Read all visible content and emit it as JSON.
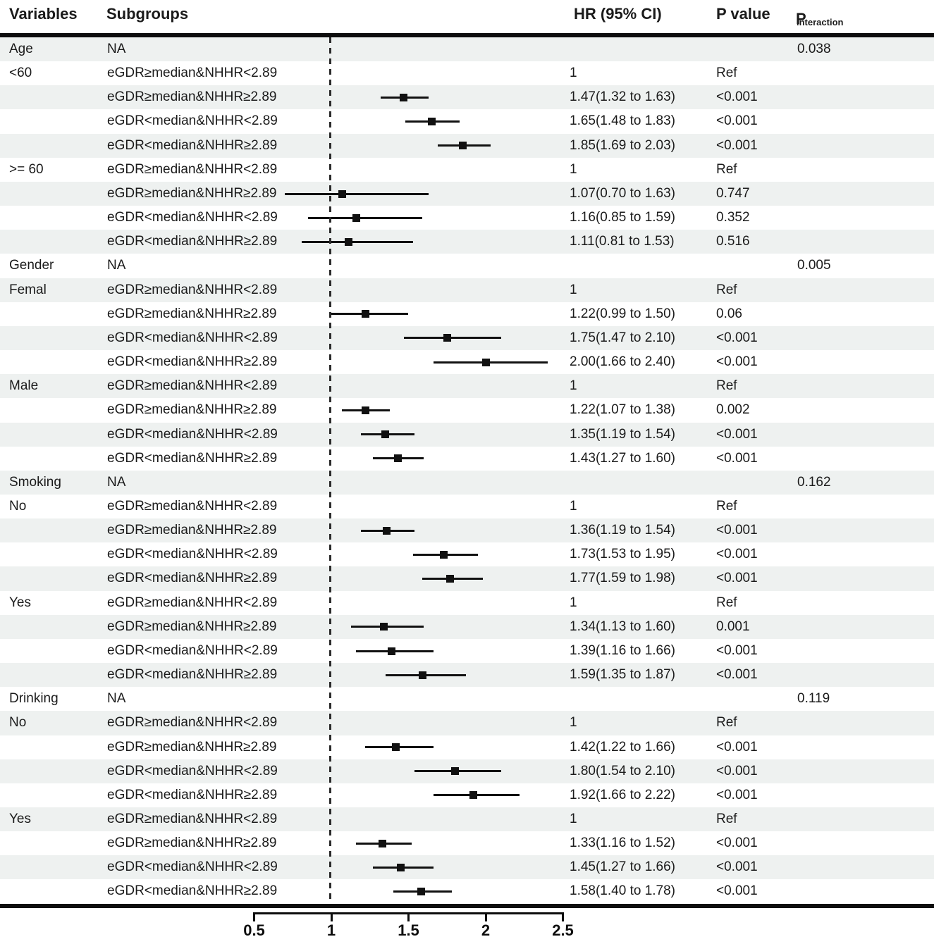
{
  "header": {
    "variables": "Variables",
    "subgroups": "Subgroups",
    "hr_ci": "HR (95% CI)",
    "p_value": "P value",
    "p_interaction_base": "P",
    "p_interaction_sub": "interaction"
  },
  "colors": {
    "stripe": "#eef1f0",
    "marker": "#111111",
    "rule": "#0d0d0d",
    "reference_dash": "#2b2b2b",
    "text": "#1b1b1b"
  },
  "chart_data": {
    "type": "forest",
    "columns": [
      "Variables",
      "Subgroups",
      "HR (95% CI)",
      "P value",
      "P interaction"
    ],
    "axis": {
      "range": [
        0.5,
        2.5
      ],
      "reference_line": 1,
      "ticks": [
        {
          "label": "0.5",
          "value": 0.5
        },
        {
          "label": "1",
          "value": 1
        },
        {
          "label": "1.5",
          "value": 1.5
        },
        {
          "label": "2",
          "value": 2
        },
        {
          "label": "2.5",
          "value": 2.5
        }
      ]
    },
    "rows": [
      {
        "variable": "Age",
        "subgroup": "NA",
        "hr_text": "",
        "p_value": "",
        "p_interaction": "0.038",
        "est": null,
        "lo": null,
        "hi": null
      },
      {
        "variable": "<60",
        "subgroup": "eGDR≥median&NHHR<2.89",
        "hr_text": "1",
        "p_value": "Ref",
        "p_interaction": "",
        "est": null,
        "lo": null,
        "hi": null
      },
      {
        "variable": "",
        "subgroup": "eGDR≥median&NHHR≥2.89",
        "hr_text": "1.47(1.32 to 1.63)",
        "p_value": "<0.001",
        "p_interaction": "",
        "est": 1.47,
        "lo": 1.32,
        "hi": 1.63
      },
      {
        "variable": "",
        "subgroup": "eGDR<median&NHHR<2.89",
        "hr_text": "1.65(1.48 to 1.83)",
        "p_value": "<0.001",
        "p_interaction": "",
        "est": 1.65,
        "lo": 1.48,
        "hi": 1.83
      },
      {
        "variable": "",
        "subgroup": "eGDR<median&NHHR≥2.89",
        "hr_text": "1.85(1.69 to 2.03)",
        "p_value": "<0.001",
        "p_interaction": "",
        "est": 1.85,
        "lo": 1.69,
        "hi": 2.03
      },
      {
        "variable": ">= 60",
        "subgroup": "eGDR≥median&NHHR<2.89",
        "hr_text": "1",
        "p_value": "Ref",
        "p_interaction": "",
        "est": null,
        "lo": null,
        "hi": null
      },
      {
        "variable": "",
        "subgroup": "eGDR≥median&NHHR≥2.89",
        "hr_text": "1.07(0.70 to 1.63)",
        "p_value": "0.747",
        "p_interaction": "",
        "est": 1.07,
        "lo": 0.7,
        "hi": 1.63
      },
      {
        "variable": "",
        "subgroup": "eGDR<median&NHHR<2.89",
        "hr_text": "1.16(0.85 to 1.59)",
        "p_value": "0.352",
        "p_interaction": "",
        "est": 1.16,
        "lo": 0.85,
        "hi": 1.59
      },
      {
        "variable": "",
        "subgroup": "eGDR<median&NHHR≥2.89",
        "hr_text": "1.11(0.81 to 1.53)",
        "p_value": "0.516",
        "p_interaction": "",
        "est": 1.11,
        "lo": 0.81,
        "hi": 1.53
      },
      {
        "variable": "Gender",
        "subgroup": "NA",
        "hr_text": "",
        "p_value": "",
        "p_interaction": "0.005",
        "est": null,
        "lo": null,
        "hi": null
      },
      {
        "variable": "Femal",
        "subgroup": "eGDR≥median&NHHR<2.89",
        "hr_text": "1",
        "p_value": "Ref",
        "p_interaction": "",
        "est": null,
        "lo": null,
        "hi": null
      },
      {
        "variable": "",
        "subgroup": "eGDR≥median&NHHR≥2.89",
        "hr_text": "1.22(0.99 to 1.50)",
        "p_value": "0.06",
        "p_interaction": "",
        "est": 1.22,
        "lo": 0.99,
        "hi": 1.5
      },
      {
        "variable": "",
        "subgroup": "eGDR<median&NHHR<2.89",
        "hr_text": "1.75(1.47 to 2.10)",
        "p_value": "<0.001",
        "p_interaction": "",
        "est": 1.75,
        "lo": 1.47,
        "hi": 2.1
      },
      {
        "variable": "",
        "subgroup": "eGDR<median&NHHR≥2.89",
        "hr_text": "2.00(1.66 to 2.40)",
        "p_value": "<0.001",
        "p_interaction": "",
        "est": 2.0,
        "lo": 1.66,
        "hi": 2.4
      },
      {
        "variable": "Male",
        "subgroup": "eGDR≥median&NHHR<2.89",
        "hr_text": "1",
        "p_value": "Ref",
        "p_interaction": "",
        "est": null,
        "lo": null,
        "hi": null
      },
      {
        "variable": "",
        "subgroup": "eGDR≥median&NHHR≥2.89",
        "hr_text": "1.22(1.07 to 1.38)",
        "p_value": "0.002",
        "p_interaction": "",
        "est": 1.22,
        "lo": 1.07,
        "hi": 1.38
      },
      {
        "variable": "",
        "subgroup": "eGDR<median&NHHR<2.89",
        "hr_text": "1.35(1.19 to 1.54)",
        "p_value": "<0.001",
        "p_interaction": "",
        "est": 1.35,
        "lo": 1.19,
        "hi": 1.54
      },
      {
        "variable": "",
        "subgroup": "eGDR<median&NHHR≥2.89",
        "hr_text": "1.43(1.27 to 1.60)",
        "p_value": "<0.001",
        "p_interaction": "",
        "est": 1.43,
        "lo": 1.27,
        "hi": 1.6
      },
      {
        "variable": "Smoking",
        "subgroup": "NA",
        "hr_text": "",
        "p_value": "",
        "p_interaction": "0.162",
        "est": null,
        "lo": null,
        "hi": null
      },
      {
        "variable": "No",
        "subgroup": "eGDR≥median&NHHR<2.89",
        "hr_text": "1",
        "p_value": "Ref",
        "p_interaction": "",
        "est": null,
        "lo": null,
        "hi": null
      },
      {
        "variable": "",
        "subgroup": "eGDR≥median&NHHR≥2.89",
        "hr_text": "1.36(1.19 to 1.54)",
        "p_value": "<0.001",
        "p_interaction": "",
        "est": 1.36,
        "lo": 1.19,
        "hi": 1.54
      },
      {
        "variable": "",
        "subgroup": "eGDR<median&NHHR<2.89",
        "hr_text": "1.73(1.53 to 1.95)",
        "p_value": "<0.001",
        "p_interaction": "",
        "est": 1.73,
        "lo": 1.53,
        "hi": 1.95
      },
      {
        "variable": "",
        "subgroup": "eGDR<median&NHHR≥2.89",
        "hr_text": "1.77(1.59 to 1.98)",
        "p_value": "<0.001",
        "p_interaction": "",
        "est": 1.77,
        "lo": 1.59,
        "hi": 1.98
      },
      {
        "variable": "Yes",
        "subgroup": "eGDR≥median&NHHR<2.89",
        "hr_text": "1",
        "p_value": "Ref",
        "p_interaction": "",
        "est": null,
        "lo": null,
        "hi": null
      },
      {
        "variable": "",
        "subgroup": "eGDR≥median&NHHR≥2.89",
        "hr_text": "1.34(1.13 to 1.60)",
        "p_value": "0.001",
        "p_interaction": "",
        "est": 1.34,
        "lo": 1.13,
        "hi": 1.6
      },
      {
        "variable": "",
        "subgroup": "eGDR<median&NHHR<2.89",
        "hr_text": "1.39(1.16 to 1.66)",
        "p_value": "<0.001",
        "p_interaction": "",
        "est": 1.39,
        "lo": 1.16,
        "hi": 1.66
      },
      {
        "variable": "",
        "subgroup": "eGDR<median&NHHR≥2.89",
        "hr_text": "1.59(1.35 to 1.87)",
        "p_value": "<0.001",
        "p_interaction": "",
        "est": 1.59,
        "lo": 1.35,
        "hi": 1.87
      },
      {
        "variable": "Drinking",
        "subgroup": "NA",
        "hr_text": "",
        "p_value": "",
        "p_interaction": "0.119",
        "est": null,
        "lo": null,
        "hi": null
      },
      {
        "variable": "No",
        "subgroup": "eGDR≥median&NHHR<2.89",
        "hr_text": "1",
        "p_value": "Ref",
        "p_interaction": "",
        "est": null,
        "lo": null,
        "hi": null
      },
      {
        "variable": "",
        "subgroup": "eGDR≥median&NHHR≥2.89",
        "hr_text": "1.42(1.22 to 1.66)",
        "p_value": "<0.001",
        "p_interaction": "",
        "est": 1.42,
        "lo": 1.22,
        "hi": 1.66
      },
      {
        "variable": "",
        "subgroup": "eGDR<median&NHHR<2.89",
        "hr_text": "1.80(1.54 to 2.10)",
        "p_value": "<0.001",
        "p_interaction": "",
        "est": 1.8,
        "lo": 1.54,
        "hi": 2.1
      },
      {
        "variable": "",
        "subgroup": "eGDR<median&NHHR≥2.89",
        "hr_text": "1.92(1.66 to 2.22)",
        "p_value": "<0.001",
        "p_interaction": "",
        "est": 1.92,
        "lo": 1.66,
        "hi": 2.22
      },
      {
        "variable": "Yes",
        "subgroup": "eGDR≥median&NHHR<2.89",
        "hr_text": "1",
        "p_value": "Ref",
        "p_interaction": "",
        "est": null,
        "lo": null,
        "hi": null
      },
      {
        "variable": "",
        "subgroup": "eGDR≥median&NHHR≥2.89",
        "hr_text": "1.33(1.16 to 1.52)",
        "p_value": "<0.001",
        "p_interaction": "",
        "est": 1.33,
        "lo": 1.16,
        "hi": 1.52
      },
      {
        "variable": "",
        "subgroup": "eGDR<median&NHHR<2.89",
        "hr_text": "1.45(1.27 to 1.66)",
        "p_value": "<0.001",
        "p_interaction": "",
        "est": 1.45,
        "lo": 1.27,
        "hi": 1.66
      },
      {
        "variable": "",
        "subgroup": "eGDR<median&NHHR≥2.89",
        "hr_text": "1.58(1.40 to 1.78)",
        "p_value": "<0.001",
        "p_interaction": "",
        "est": 1.58,
        "lo": 1.4,
        "hi": 1.78
      }
    ]
  }
}
